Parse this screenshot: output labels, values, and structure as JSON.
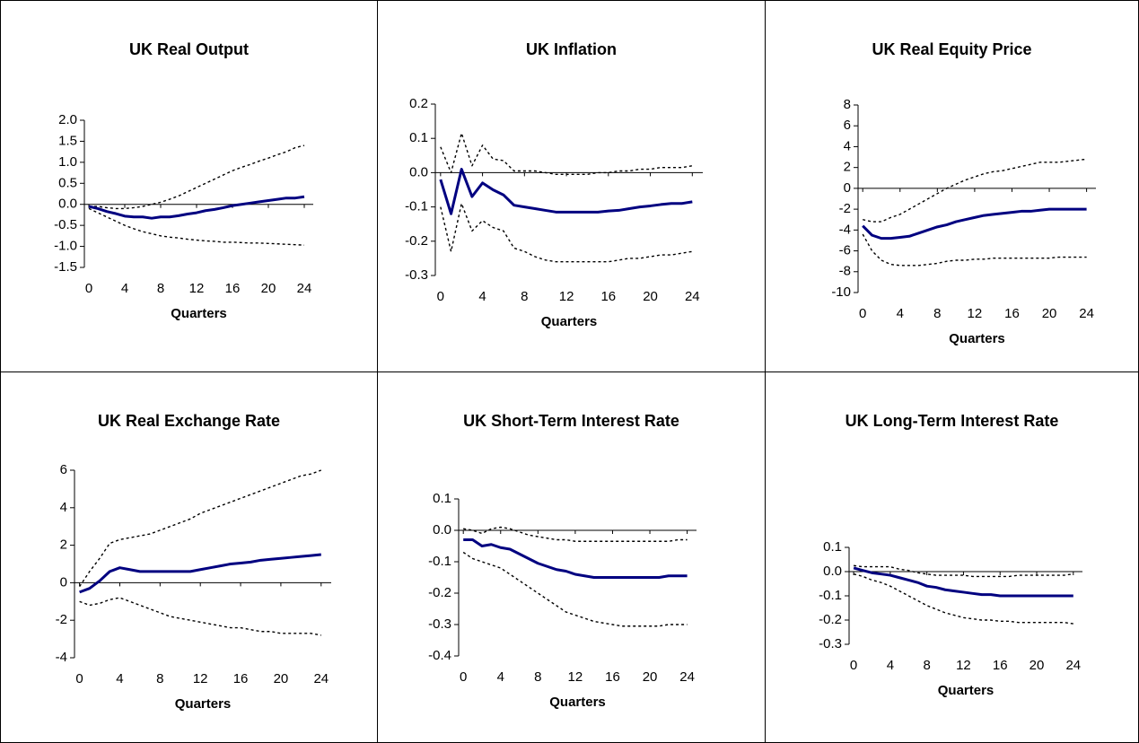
{
  "chart_data": [
    {
      "type": "line",
      "title": "UK Real Output",
      "xlabel": "Quarters",
      "x": [
        0,
        1,
        2,
        3,
        4,
        5,
        6,
        7,
        8,
        9,
        10,
        11,
        12,
        13,
        14,
        15,
        16,
        17,
        18,
        19,
        20,
        21,
        22,
        23,
        24
      ],
      "xlim": [
        -0.5,
        25
      ],
      "xticks": [
        0,
        4,
        8,
        12,
        16,
        20,
        24
      ],
      "ylim": [
        -1.5,
        2
      ],
      "yticks": [
        {
          "value": 2,
          "label": "2.0"
        },
        1.5,
        {
          "value": 1,
          "label": "1.0"
        },
        0.5,
        {
          "value": 0,
          "label": "0.0"
        },
        -0.5,
        {
          "value": -1,
          "label": "-1.0"
        },
        -1.5
      ],
      "grid": false,
      "series": [
        {
          "color": "#000080",
          "style": "solid",
          "values": [
            -0.05,
            -0.1,
            -0.17,
            -0.22,
            -0.28,
            -0.3,
            -0.3,
            -0.33,
            -0.3,
            -0.3,
            -0.27,
            -0.23,
            -0.2,
            -0.15,
            -0.12,
            -0.08,
            -0.03,
            0,
            0.03,
            0.06,
            0.09,
            0.12,
            0.15,
            0.15,
            0.18
          ]
        },
        {
          "color": "#000000",
          "style": "dashed",
          "values": [
            -0.05,
            -0.05,
            -0.08,
            -0.1,
            -0.1,
            -0.08,
            -0.05,
            0,
            0.05,
            0.12,
            0.2,
            0.3,
            0.4,
            0.5,
            0.6,
            0.7,
            0.8,
            0.88,
            0.95,
            1.03,
            1.1,
            1.18,
            1.25,
            1.35,
            1.4
          ]
        },
        {
          "color": "#000000",
          "style": "dashed",
          "values": [
            -0.1,
            -0.2,
            -0.3,
            -0.4,
            -0.5,
            -0.58,
            -0.65,
            -0.7,
            -0.75,
            -0.78,
            -0.8,
            -0.83,
            -0.85,
            -0.87,
            -0.88,
            -0.9,
            -0.9,
            -0.91,
            -0.92,
            -0.92,
            -0.93,
            -0.94,
            -0.95,
            -0.96,
            -0.97
          ]
        }
      ]
    },
    {
      "type": "line",
      "title": "UK Inflation",
      "xlabel": "Quarters",
      "x": [
        0,
        1,
        2,
        3,
        4,
        5,
        6,
        7,
        8,
        9,
        10,
        11,
        12,
        13,
        14,
        15,
        16,
        17,
        18,
        19,
        20,
        21,
        22,
        23,
        24
      ],
      "xlim": [
        -0.5,
        25
      ],
      "xticks": [
        0,
        4,
        8,
        12,
        16,
        20,
        24
      ],
      "ylim": [
        -0.3,
        0.2
      ],
      "yticks": [
        0.2,
        0.1,
        {
          "value": 0,
          "label": "0.0"
        },
        -0.1,
        -0.2,
        -0.3
      ],
      "grid": false,
      "series": [
        {
          "color": "#000080",
          "style": "solid",
          "values": [
            -0.02,
            -0.12,
            0.01,
            -0.07,
            -0.03,
            -0.05,
            -0.065,
            -0.095,
            -0.1,
            -0.105,
            -0.11,
            -0.115,
            -0.115,
            -0.115,
            -0.115,
            -0.115,
            -0.112,
            -0.11,
            -0.105,
            -0.1,
            -0.097,
            -0.093,
            -0.09,
            -0.09,
            -0.085
          ]
        },
        {
          "color": "#000000",
          "style": "dashed",
          "values": [
            0.075,
            0,
            0.115,
            0.02,
            0.08,
            0.04,
            0.035,
            0.005,
            0.005,
            0.005,
            0,
            -0.005,
            -0.005,
            -0.005,
            -0.005,
            0,
            0,
            0.005,
            0.005,
            0.01,
            0.01,
            0.015,
            0.015,
            0.015,
            0.02
          ]
        },
        {
          "color": "#000000",
          "style": "dashed",
          "values": [
            -0.1,
            -0.23,
            -0.09,
            -0.17,
            -0.14,
            -0.16,
            -0.17,
            -0.22,
            -0.23,
            -0.245,
            -0.255,
            -0.26,
            -0.26,
            -0.26,
            -0.26,
            -0.26,
            -0.26,
            -0.255,
            -0.25,
            -0.25,
            -0.245,
            -0.24,
            -0.24,
            -0.235,
            -0.23
          ]
        }
      ]
    },
    {
      "type": "line",
      "title": "UK Real Equity Price",
      "xlabel": "Quarters",
      "x": [
        0,
        1,
        2,
        3,
        4,
        5,
        6,
        7,
        8,
        9,
        10,
        11,
        12,
        13,
        14,
        15,
        16,
        17,
        18,
        19,
        20,
        21,
        22,
        23,
        24
      ],
      "xlim": [
        -0.5,
        25
      ],
      "xticks": [
        0,
        4,
        8,
        12,
        16,
        20,
        24
      ],
      "ylim": [
        -10,
        8
      ],
      "yticks": [
        8,
        6,
        4,
        2,
        0,
        -2,
        -4,
        -6,
        -8,
        -10
      ],
      "grid": false,
      "series": [
        {
          "color": "#000080",
          "style": "solid",
          "values": [
            -3.6,
            -4.5,
            -4.8,
            -4.8,
            -4.7,
            -4.6,
            -4.3,
            -4.0,
            -3.7,
            -3.5,
            -3.2,
            -3.0,
            -2.8,
            -2.6,
            -2.5,
            -2.4,
            -2.3,
            -2.2,
            -2.2,
            -2.1,
            -2.0,
            -2.0,
            -2.0,
            -2.0,
            -2.0
          ]
        },
        {
          "color": "#000000",
          "style": "dashed",
          "values": [
            -3.0,
            -3.2,
            -3.2,
            -2.8,
            -2.5,
            -2.0,
            -1.5,
            -1.0,
            -0.5,
            0,
            0.4,
            0.8,
            1.1,
            1.4,
            1.6,
            1.7,
            1.9,
            2.1,
            2.3,
            2.5,
            2.5,
            2.5,
            2.6,
            2.7,
            2.8
          ]
        },
        {
          "color": "#000000",
          "style": "dashed",
          "values": [
            -4.4,
            -6.0,
            -6.9,
            -7.3,
            -7.4,
            -7.4,
            -7.4,
            -7.3,
            -7.2,
            -7.0,
            -6.9,
            -6.9,
            -6.8,
            -6.8,
            -6.7,
            -6.7,
            -6.7,
            -6.7,
            -6.7,
            -6.7,
            -6.7,
            -6.6,
            -6.6,
            -6.6,
            -6.6
          ]
        }
      ]
    },
    {
      "type": "line",
      "title": "UK Real Exchange Rate",
      "xlabel": "Quarters",
      "x": [
        0,
        1,
        2,
        3,
        4,
        5,
        6,
        7,
        8,
        9,
        10,
        11,
        12,
        13,
        14,
        15,
        16,
        17,
        18,
        19,
        20,
        21,
        22,
        23,
        24
      ],
      "xlim": [
        -0.5,
        25
      ],
      "xticks": [
        0,
        4,
        8,
        12,
        16,
        20,
        24
      ],
      "ylim": [
        -4,
        6
      ],
      "yticks": [
        6,
        4,
        2,
        0,
        -2,
        -4
      ],
      "grid": false,
      "series": [
        {
          "color": "#000080",
          "style": "solid",
          "values": [
            -0.5,
            -0.3,
            0.1,
            0.6,
            0.8,
            0.7,
            0.6,
            0.6,
            0.6,
            0.6,
            0.6,
            0.6,
            0.7,
            0.8,
            0.9,
            1.0,
            1.05,
            1.1,
            1.2,
            1.25,
            1.3,
            1.35,
            1.4,
            1.45,
            1.5
          ]
        },
        {
          "color": "#000000",
          "style": "dashed",
          "values": [
            -0.2,
            0.6,
            1.3,
            2.1,
            2.3,
            2.4,
            2.5,
            2.6,
            2.8,
            3.0,
            3.2,
            3.4,
            3.7,
            3.9,
            4.1,
            4.3,
            4.5,
            4.7,
            4.9,
            5.1,
            5.3,
            5.5,
            5.7,
            5.8,
            6.0
          ]
        },
        {
          "color": "#000000",
          "style": "dashed",
          "values": [
            -1.0,
            -1.2,
            -1.1,
            -0.9,
            -0.8,
            -1.0,
            -1.2,
            -1.4,
            -1.6,
            -1.8,
            -1.9,
            -2.0,
            -2.1,
            -2.2,
            -2.3,
            -2.4,
            -2.4,
            -2.5,
            -2.6,
            -2.6,
            -2.7,
            -2.7,
            -2.7,
            -2.7,
            -2.8
          ]
        }
      ]
    },
    {
      "type": "line",
      "title": "UK Short-Term Interest Rate",
      "xlabel": "Quarters",
      "x": [
        0,
        1,
        2,
        3,
        4,
        5,
        6,
        7,
        8,
        9,
        10,
        11,
        12,
        13,
        14,
        15,
        16,
        17,
        18,
        19,
        20,
        21,
        22,
        23,
        24
      ],
      "xlim": [
        -0.5,
        25
      ],
      "xticks": [
        0,
        4,
        8,
        12,
        16,
        20,
        24
      ],
      "ylim": [
        -0.4,
        0.1
      ],
      "yticks": [
        0.1,
        {
          "value": 0,
          "label": "0.0"
        },
        -0.1,
        -0.2,
        -0.3,
        -0.4
      ],
      "grid": false,
      "series": [
        {
          "color": "#000080",
          "style": "solid",
          "values": [
            -0.03,
            -0.03,
            -0.05,
            -0.045,
            -0.055,
            -0.06,
            -0.075,
            -0.09,
            -0.105,
            -0.115,
            -0.125,
            -0.13,
            -0.14,
            -0.145,
            -0.15,
            -0.15,
            -0.15,
            -0.15,
            -0.15,
            -0.15,
            -0.15,
            -0.15,
            -0.145,
            -0.145,
            -0.145
          ]
        },
        {
          "color": "#000000",
          "style": "dashed",
          "values": [
            0.005,
            0,
            -0.01,
            0.005,
            0.01,
            0.005,
            -0.005,
            -0.015,
            -0.02,
            -0.025,
            -0.03,
            -0.03,
            -0.035,
            -0.035,
            -0.035,
            -0.035,
            -0.035,
            -0.035,
            -0.035,
            -0.035,
            -0.035,
            -0.035,
            -0.035,
            -0.03,
            -0.03
          ]
        },
        {
          "color": "#000000",
          "style": "dashed",
          "values": [
            -0.07,
            -0.09,
            -0.1,
            -0.11,
            -0.12,
            -0.14,
            -0.16,
            -0.18,
            -0.2,
            -0.22,
            -0.24,
            -0.26,
            -0.27,
            -0.28,
            -0.29,
            -0.295,
            -0.3,
            -0.305,
            -0.305,
            -0.305,
            -0.305,
            -0.305,
            -0.3,
            -0.3,
            -0.3
          ]
        }
      ]
    },
    {
      "type": "line",
      "title": "UK Long-Term Interest Rate",
      "xlabel": "Quarters",
      "x": [
        0,
        1,
        2,
        3,
        4,
        5,
        6,
        7,
        8,
        9,
        10,
        11,
        12,
        13,
        14,
        15,
        16,
        17,
        18,
        19,
        20,
        21,
        22,
        23,
        24
      ],
      "xlim": [
        -0.5,
        25
      ],
      "xticks": [
        0,
        4,
        8,
        12,
        16,
        20,
        24
      ],
      "ylim": [
        -0.3,
        0.1
      ],
      "yticks": [
        0.1,
        {
          "value": 0,
          "label": "0.0"
        },
        -0.1,
        -0.2,
        -0.3
      ],
      "grid": false,
      "series": [
        {
          "color": "#000080",
          "style": "solid",
          "values": [
            0.015,
            0.005,
            -0.005,
            -0.01,
            -0.015,
            -0.025,
            -0.035,
            -0.045,
            -0.06,
            -0.065,
            -0.075,
            -0.08,
            -0.085,
            -0.09,
            -0.095,
            -0.095,
            -0.1,
            -0.1,
            -0.1,
            -0.1,
            -0.1,
            -0.1,
            -0.1,
            -0.1,
            -0.1
          ]
        },
        {
          "color": "#000000",
          "style": "dashed",
          "values": [
            0.025,
            0.02,
            0.02,
            0.02,
            0.02,
            0.01,
            0.005,
            -0.005,
            -0.01,
            -0.015,
            -0.015,
            -0.015,
            -0.015,
            -0.02,
            -0.02,
            -0.02,
            -0.02,
            -0.02,
            -0.015,
            -0.015,
            -0.015,
            -0.015,
            -0.015,
            -0.015,
            -0.01
          ]
        },
        {
          "color": "#000000",
          "style": "dashed",
          "values": [
            -0.01,
            -0.02,
            -0.035,
            -0.045,
            -0.06,
            -0.08,
            -0.1,
            -0.12,
            -0.14,
            -0.155,
            -0.17,
            -0.18,
            -0.19,
            -0.195,
            -0.2,
            -0.2,
            -0.205,
            -0.205,
            -0.21,
            -0.21,
            -0.21,
            -0.21,
            -0.21,
            -0.21,
            -0.215
          ]
        }
      ]
    }
  ]
}
